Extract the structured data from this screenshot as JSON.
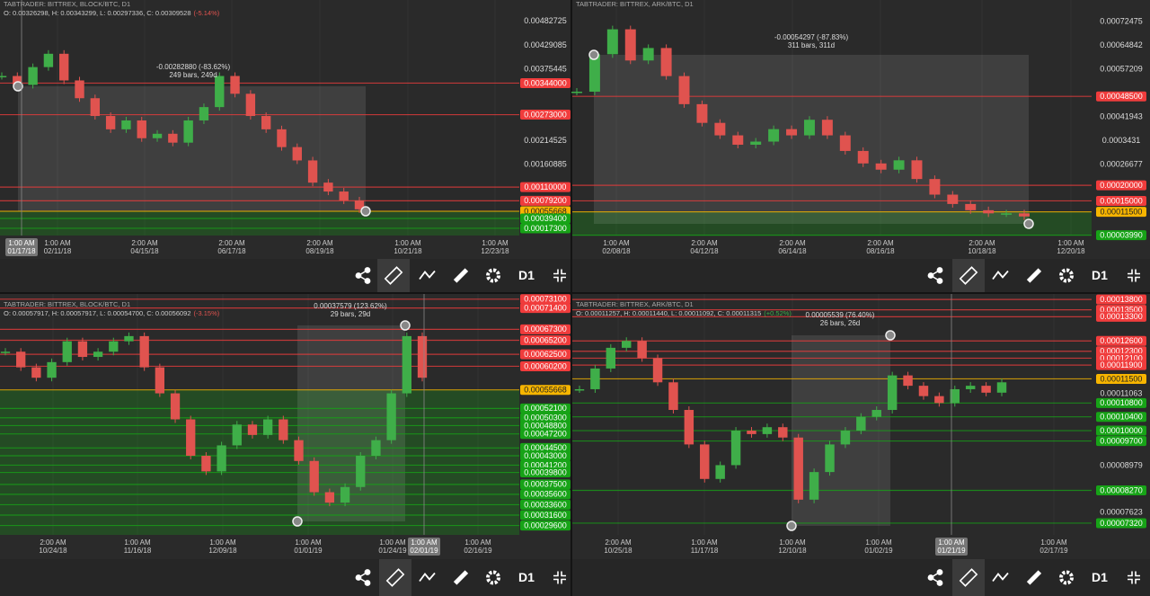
{
  "panels": [
    {
      "header": "TABTRADER: BITTREX, BLOCK/BTC, D1",
      "ohlc": "O: 0.00326298, H: 0.00343299, L: 0.00297336, C: 0.00309528",
      "change": "(-5.14%)",
      "measure": {
        "delta": "-0.00282880 (-83.62%)",
        "span": "249 bars, 249d"
      },
      "ylim": [
        1e-05,
        0.00531
      ],
      "yticks": [
        0.00482725,
        0.00429085,
        0.00375445,
        0.00214525,
        0.00160885
      ],
      "price_tags": [
        {
          "value": 0.00344,
          "label": "0.00344000",
          "color": "#f03c3c"
        },
        {
          "value": 0.00273,
          "label": "0.00273000",
          "color": "#f03c3c"
        },
        {
          "value": 0.0011,
          "label": "0.00110000",
          "color": "#f03c3c"
        },
        {
          "value": 0.000792,
          "label": "0.00079200",
          "color": "#f03c3c"
        },
        {
          "value": 0.00055668,
          "label": "0.00055668",
          "color": "#f7b500"
        },
        {
          "value": 0.000394,
          "label": "0.00039400",
          "color": "#17a317"
        },
        {
          "value": 0.000173,
          "label": "0.00017300",
          "color": "#17a317"
        }
      ],
      "buy_zone": true,
      "xticks": [
        {
          "time": "1:00 AM",
          "date": "02/11/18"
        },
        {
          "time": "2:00 AM",
          "date": "04/15/18"
        },
        {
          "time": "2:00 AM",
          "date": "06/17/18"
        },
        {
          "time": "2:00 AM",
          "date": "08/19/18"
        },
        {
          "time": "1:00 AM",
          "date": "10/21/18"
        },
        {
          "time": "1:00 AM",
          "date": "12/23/18"
        }
      ],
      "crosshair": {
        "time": "1:00 AM",
        "date": "01/17/18"
      },
      "close": [
        0.0036,
        0.0034,
        0.0038,
        0.0041,
        0.0035,
        0.0031,
        0.0027,
        0.0024,
        0.0026,
        0.0022,
        0.0023,
        0.0021,
        0.0026,
        0.0029,
        0.0036,
        0.0032,
        0.0027,
        0.0024,
        0.002,
        0.0017,
        0.0012,
        0.001,
        0.0008,
        0.0006
      ],
      "timeframe": "D1"
    },
    {
      "header": "TABTRADER: BITTREX, ARK/BTC, D1",
      "measure": {
        "delta": "-0.00054297 (-87.83%)",
        "span": "311 bars, 311d"
      },
      "ylim": [
        3.89e-05,
        0.0007939
      ],
      "yticks": [
        0.00072475,
        0.00064842,
        0.00057209,
        0.00041943,
        0.0003431,
        0.00026677
      ],
      "price_tags": [
        {
          "value": 0.000485,
          "label": "0.00048500",
          "color": "#f03c3c"
        },
        {
          "value": 0.0002,
          "label": "0.00020000",
          "color": "#f03c3c"
        },
        {
          "value": 0.00015,
          "label": "0.00015000",
          "color": "#f03c3c"
        },
        {
          "value": 0.000115,
          "label": "0.00011500",
          "color": "#f7b500"
        },
        {
          "value": 3.99e-05,
          "label": "0.00003990",
          "color": "#17a317"
        }
      ],
      "buy_zone": true,
      "xticks": [
        {
          "time": "1:00 AM",
          "date": "02/08/18"
        },
        {
          "time": "2:00 AM",
          "date": "04/12/18"
        },
        {
          "time": "2:00 AM",
          "date": "06/14/18"
        },
        {
          "time": "2:00 AM",
          "date": "08/16/18"
        },
        {
          "time": "2:00 AM",
          "date": "10/18/18"
        },
        {
          "time": "1:00 AM",
          "date": "12/20/18"
        }
      ],
      "close": [
        0.0005,
        0.00062,
        0.0007,
        0.0006,
        0.00064,
        0.00055,
        0.00046,
        0.0004,
        0.00036,
        0.00033,
        0.00034,
        0.00038,
        0.00036,
        0.00041,
        0.00036,
        0.00031,
        0.00027,
        0.00025,
        0.00028,
        0.00022,
        0.00017,
        0.00014,
        0.00012,
        0.00011,
        0.00011,
        0.0001
      ],
      "timeframe": "D1"
    },
    {
      "header": "TABTRADER: BITTREX, BLOCK/BTC, D1",
      "ohlc": "O: 0.00057917, H: 0.00057917, L: 0.00054700, C: 0.00056092",
      "change": "(-3.15%)",
      "measure": {
        "delta": "0.00037579 (123.62%)",
        "span": "29 bars, 29d"
      },
      "ylim": [
        0.000278,
        0.000741
      ],
      "yticks": [],
      "price_tags": [
        {
          "value": 0.000731,
          "label": "0.00073100",
          "color": "#f03c3c"
        },
        {
          "value": 0.000714,
          "label": "0.00071400",
          "color": "#f03c3c"
        },
        {
          "value": 0.000673,
          "label": "0.00067300",
          "color": "#f03c3c"
        },
        {
          "value": 0.000652,
          "label": "0.00065200",
          "color": "#f03c3c"
        },
        {
          "value": 0.000625,
          "label": "0.00062500",
          "color": "#f03c3c"
        },
        {
          "value": 0.000602,
          "label": "0.00060200",
          "color": "#f03c3c"
        },
        {
          "value": 0.00055668,
          "label": "0.00055668",
          "color": "#f7b500"
        },
        {
          "value": 0.000521,
          "label": "0.00052100",
          "color": "#17a317"
        },
        {
          "value": 0.000503,
          "label": "0.00050300",
          "color": "#17a317"
        },
        {
          "value": 0.000488,
          "label": "0.00048800",
          "color": "#17a317"
        },
        {
          "value": 0.000472,
          "label": "0.00047200",
          "color": "#17a317"
        },
        {
          "value": 0.000445,
          "label": "0.00044500",
          "color": "#17a317"
        },
        {
          "value": 0.00043,
          "label": "0.00043000",
          "color": "#17a317"
        },
        {
          "value": 0.000412,
          "label": "0.00041200",
          "color": "#17a317"
        },
        {
          "value": 0.000398,
          "label": "0.00039800",
          "color": "#17a317"
        },
        {
          "value": 0.000375,
          "label": "0.00037500",
          "color": "#17a317"
        },
        {
          "value": 0.000356,
          "label": "0.00035600",
          "color": "#17a317"
        },
        {
          "value": 0.000336,
          "label": "0.00033600",
          "color": "#17a317"
        },
        {
          "value": 0.000316,
          "label": "0.00031600",
          "color": "#17a317"
        },
        {
          "value": 0.000296,
          "label": "0.00029600",
          "color": "#17a317"
        }
      ],
      "buy_zone": true,
      "xticks": [
        {
          "time": "2:00 AM",
          "date": "10/24/18"
        },
        {
          "time": "1:00 AM",
          "date": "11/16/18"
        },
        {
          "time": "1:00 AM",
          "date": "12/09/18"
        },
        {
          "time": "1:00 AM",
          "date": "01/01/19"
        },
        {
          "time": "1:00 AM",
          "date": "01/24/19"
        },
        {
          "time": "1:00 AM",
          "date": "02/16/19"
        }
      ],
      "crosshair": {
        "time": "1:00 AM",
        "date": "02/01/19"
      },
      "close": [
        0.00063,
        0.0006,
        0.00058,
        0.00061,
        0.00065,
        0.00062,
        0.00063,
        0.00065,
        0.00066,
        0.0006,
        0.00055,
        0.0005,
        0.00043,
        0.0004,
        0.00045,
        0.00049,
        0.00047,
        0.0005,
        0.00046,
        0.00042,
        0.00036,
        0.00034,
        0.00037,
        0.00043,
        0.00046,
        0.00055,
        0.00066,
        0.00058
      ],
      "timeframe": "D1"
    },
    {
      "header": "TABTRADER: BITTREX, ARK/BTC, D1",
      "ohlc": "O: 0.00011257, H: 0.00011440, L: 0.00011092, C: 0.00011315",
      "change": "(+0.52%)",
      "measure": {
        "delta": "0.00005539 (76.40%)",
        "span": "26 bars, 26d"
      },
      "ylim": [
        6.98e-05,
        0.0001396
      ],
      "yticks": [
        0.00011063,
        8.979e-05,
        7.623e-05
      ],
      "price_tags": [
        {
          "value": 0.000138,
          "label": "0.00013800",
          "color": "#f03c3c"
        },
        {
          "value": 0.000135,
          "label": "0.00013500",
          "color": "#f03c3c"
        },
        {
          "value": 0.000133,
          "label": "0.00013300",
          "color": "#f03c3c"
        },
        {
          "value": 0.000126,
          "label": "0.00012600",
          "color": "#f03c3c"
        },
        {
          "value": 0.000123,
          "label": "0.00012300",
          "color": "#f03c3c"
        },
        {
          "value": 0.000121,
          "label": "0.00012100",
          "color": "#f03c3c"
        },
        {
          "value": 0.000119,
          "label": "0.00011900",
          "color": "#f03c3c"
        },
        {
          "value": 0.000115,
          "label": "0.00011500",
          "color": "#f7b500"
        },
        {
          "value": 0.000108,
          "label": "0.00010800",
          "color": "#17a317"
        },
        {
          "value": 0.000104,
          "label": "0.00010400",
          "color": "#17a317"
        },
        {
          "value": 0.0001,
          "label": "0.00010000",
          "color": "#17a317"
        },
        {
          "value": 9.7e-05,
          "label": "0.00009700",
          "color": "#17a317"
        },
        {
          "value": 8.27e-05,
          "label": "0.00008270",
          "color": "#17a317"
        },
        {
          "value": 7.32e-05,
          "label": "0.00007320",
          "color": "#17a317"
        }
      ],
      "buy_zone": false,
      "xticks": [
        {
          "time": "2:00 AM",
          "date": "10/25/18"
        },
        {
          "time": "1:00 AM",
          "date": "11/17/18"
        },
        {
          "time": "1:00 AM",
          "date": "12/10/18"
        },
        {
          "time": "1:00 AM",
          "date": "01/02/19"
        },
        {
          "time": "1:00 AM",
          "date": "02/17/19"
        }
      ],
      "crosshair": {
        "time": "1:00 AM",
        "date": "01/21/19"
      },
      "close": [
        0.000112,
        0.000118,
        0.000124,
        0.000126,
        0.000121,
        0.000114,
        0.000106,
        9.6e-05,
        8.6e-05,
        9e-05,
        0.0001,
        9.9e-05,
        0.000101,
        9.8e-05,
        8e-05,
        8.8e-05,
        9.6e-05,
        0.0001,
        0.000104,
        0.000106,
        0.000116,
        0.000113,
        0.00011,
        0.000108,
        0.000112,
        0.000113,
        0.000111,
        0.000114
      ],
      "timeframe": "D1"
    }
  ]
}
